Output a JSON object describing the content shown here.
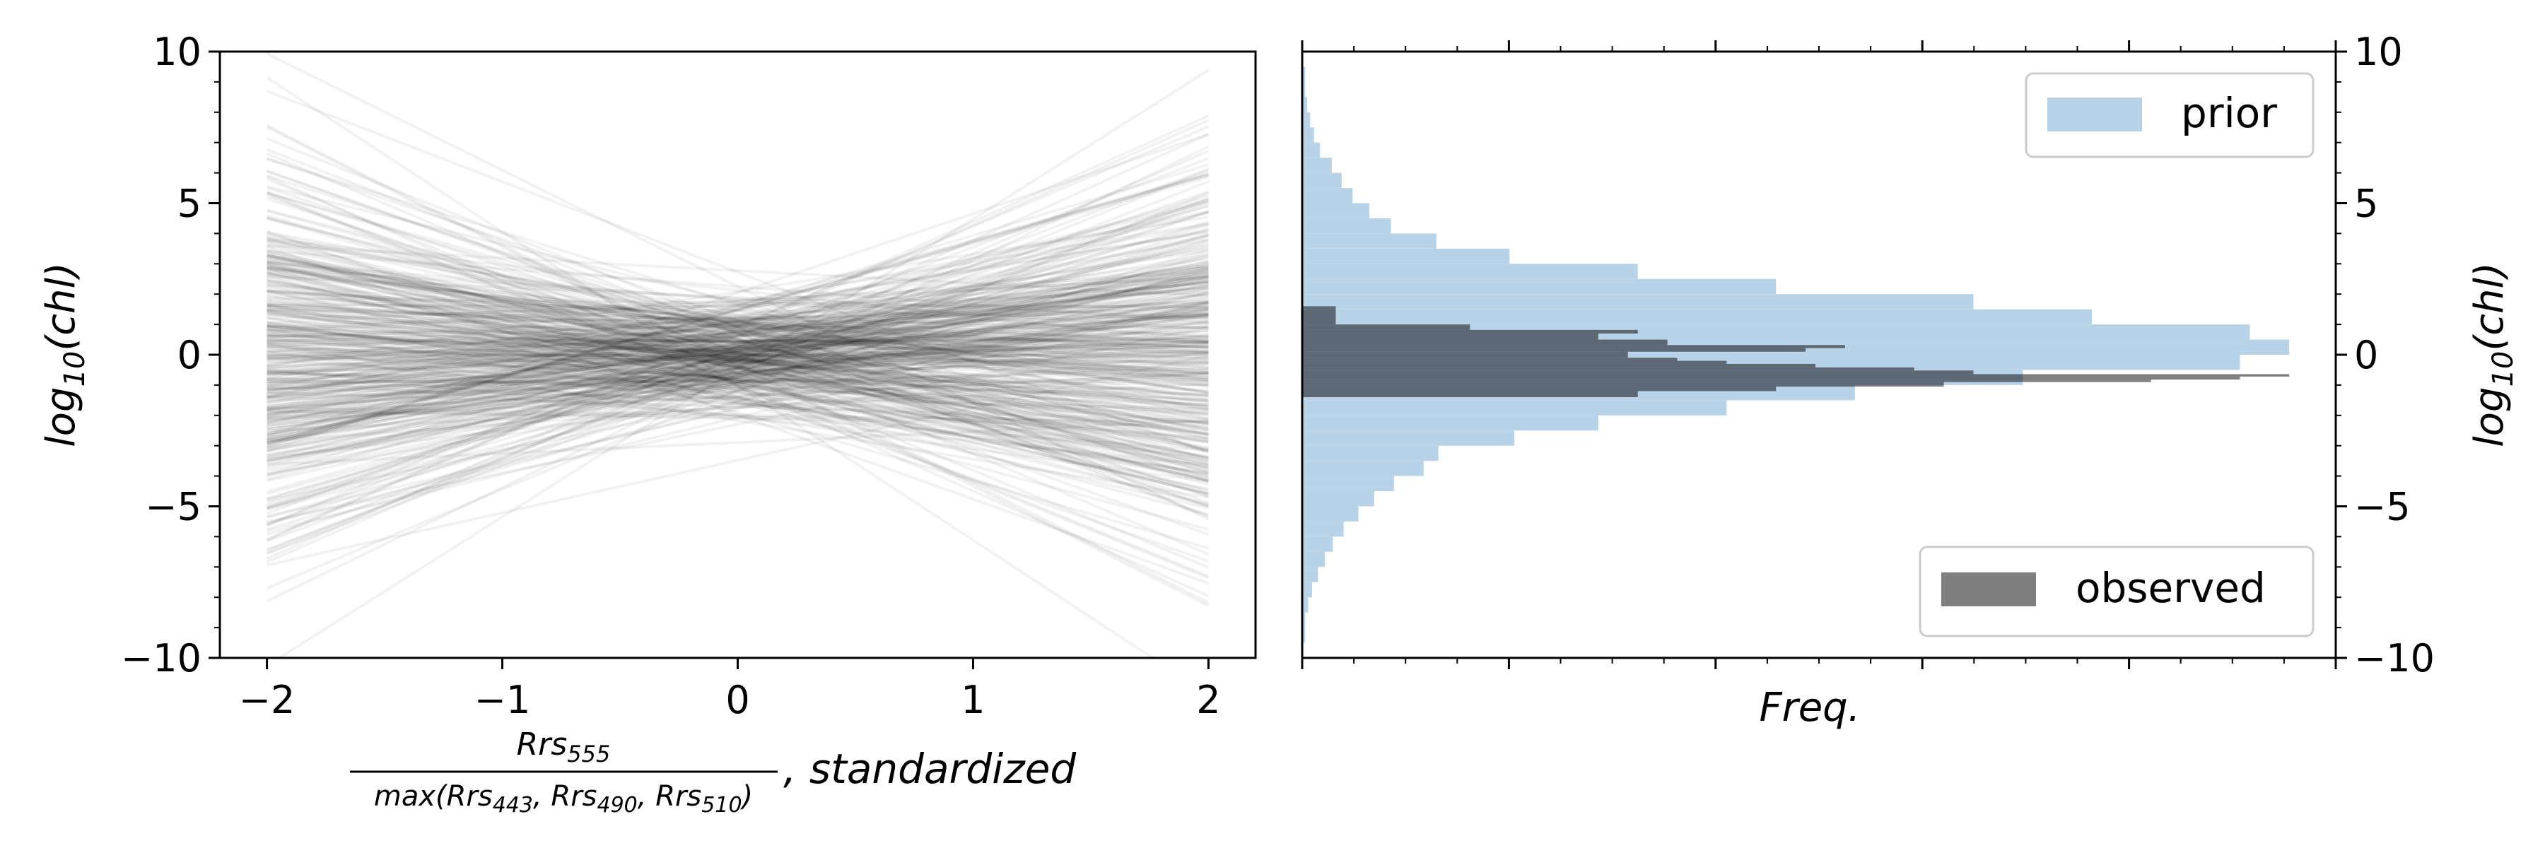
{
  "chart_data": [
    {
      "type": "line",
      "xlabel": {
        "numerator": "Rrs",
        "numerator_sub": "555",
        "denominator_prefix": "max(",
        "denominator_terms": [
          {
            "base": "Rrs",
            "sub": "443"
          },
          {
            "base": "Rrs",
            "sub": "490"
          },
          {
            "base": "Rrs",
            "sub": "510"
          }
        ],
        "denominator_suffix": ")",
        "suffix": ", standardized"
      },
      "ylabel": {
        "prefix": "log",
        "sub": "10",
        "suffix": "(chl)"
      },
      "xlim": [
        -2.2,
        2.2
      ],
      "ylim": [
        -10,
        10
      ],
      "xticks": [
        -2,
        -1,
        0,
        1,
        2
      ],
      "xtick_labels": [
        "−2",
        "−1",
        "0",
        "1",
        "2"
      ],
      "yticks": [
        -10,
        -5,
        0,
        5,
        10
      ],
      "ytick_labels": [
        "−10",
        "−5",
        "0",
        "5",
        "10"
      ],
      "line_x_range": [
        -2,
        2
      ],
      "line_count": 400,
      "line_color": "#000000",
      "line_opacity": 0.05,
      "intercept_sd": 1.0,
      "slope_sd": 1.5
    },
    {
      "type": "histogram",
      "orientation": "horizontal",
      "xlabel": "Freq.",
      "ylabel": {
        "prefix": "log",
        "sub": "10",
        "suffix": "(chl)"
      },
      "ylim": [
        -10,
        10
      ],
      "yticks": [
        -10,
        -5,
        0,
        5,
        10
      ],
      "ytick_labels": [
        "−10",
        "−5",
        "0",
        "5",
        "10"
      ],
      "x_max": 1.0,
      "series": [
        {
          "name": "prior",
          "color": "#b8d3e8",
          "bins": [
            [
              -9.5,
              -8.5,
              0.003
            ],
            [
              -8.5,
              -8.0,
              0.006
            ],
            [
              -8.0,
              -7.5,
              0.01
            ],
            [
              -7.5,
              -7.0,
              0.016
            ],
            [
              -7.0,
              -6.5,
              0.023
            ],
            [
              -6.5,
              -6.0,
              0.031
            ],
            [
              -6.0,
              -5.5,
              0.042
            ],
            [
              -5.5,
              -5.0,
              0.057
            ],
            [
              -5.0,
              -4.5,
              0.073
            ],
            [
              -4.5,
              -4.0,
              0.093
            ],
            [
              -4.0,
              -3.5,
              0.123
            ],
            [
              -3.5,
              -3.0,
              0.138
            ],
            [
              -3.0,
              -2.5,
              0.215
            ],
            [
              -2.5,
              -2.0,
              0.3
            ],
            [
              -2.0,
              -1.5,
              0.43
            ],
            [
              -1.5,
              -1.0,
              0.56
            ],
            [
              -1.0,
              -0.5,
              0.73
            ],
            [
              -0.5,
              0.0,
              0.95
            ],
            [
              0.0,
              0.5,
              1.0
            ],
            [
              0.5,
              1.0,
              0.96
            ],
            [
              1.0,
              1.5,
              0.8
            ],
            [
              1.5,
              2.0,
              0.68
            ],
            [
              2.0,
              2.5,
              0.48
            ],
            [
              2.5,
              3.0,
              0.34
            ],
            [
              3.0,
              3.5,
              0.21
            ],
            [
              3.5,
              4.0,
              0.136
            ],
            [
              4.0,
              4.5,
              0.09
            ],
            [
              4.5,
              5.0,
              0.068
            ],
            [
              5.0,
              5.5,
              0.051
            ],
            [
              5.5,
              6.0,
              0.04
            ],
            [
              6.0,
              6.5,
              0.03
            ],
            [
              6.5,
              7.0,
              0.018
            ],
            [
              7.0,
              7.5,
              0.012
            ],
            [
              7.5,
              8.0,
              0.008
            ],
            [
              8.0,
              8.5,
              0.005
            ],
            [
              8.5,
              9.5,
              0.003
            ]
          ]
        },
        {
          "name": "observed",
          "color": "#000000",
          "opacity": 0.5,
          "bins": [
            [
              -1.4,
              -1.2,
              0.34
            ],
            [
              -1.2,
              -1.05,
              0.48
            ],
            [
              -1.05,
              -0.9,
              0.65
            ],
            [
              -0.9,
              -0.82,
              0.86
            ],
            [
              -0.82,
              -0.72,
              0.95
            ],
            [
              -0.72,
              -0.64,
              1.0
            ],
            [
              -0.64,
              -0.52,
              0.68
            ],
            [
              -0.52,
              -0.42,
              0.62
            ],
            [
              -0.42,
              -0.3,
              0.52
            ],
            [
              -0.3,
              -0.2,
              0.43
            ],
            [
              -0.2,
              -0.1,
              0.38
            ],
            [
              -0.1,
              0.1,
              0.33
            ],
            [
              0.1,
              0.22,
              0.51
            ],
            [
              0.22,
              0.32,
              0.55
            ],
            [
              0.32,
              0.5,
              0.37
            ],
            [
              0.5,
              0.7,
              0.3
            ],
            [
              0.7,
              0.82,
              0.34
            ],
            [
              0.82,
              1.0,
              0.17
            ],
            [
              1.0,
              1.6,
              0.034
            ]
          ]
        }
      ]
    }
  ]
}
